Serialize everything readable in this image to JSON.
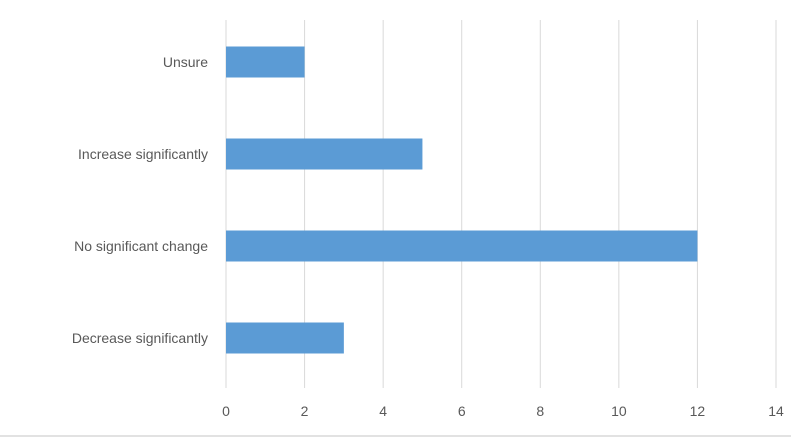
{
  "chart_data": {
    "type": "bar",
    "orientation": "horizontal",
    "categories": [
      "Unsure",
      "Increase significantly",
      "No significant change",
      "Decrease significantly"
    ],
    "values": [
      2,
      5,
      12,
      3
    ],
    "xlim": [
      0,
      14
    ],
    "x_ticks": [
      0,
      2,
      4,
      6,
      8,
      10,
      12,
      14
    ],
    "grid": "vertical",
    "legend": "none",
    "bar_color": "#5b9bd5",
    "grid_color": "#d9d9d9",
    "text_color": "#595959"
  }
}
